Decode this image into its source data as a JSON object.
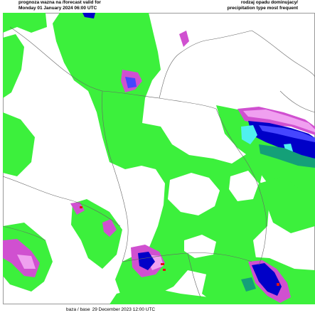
{
  "header": {
    "left_line1": "prognoza wazna na /forecast valid for",
    "left_line2": "Monday 01 January 2024 06:00 UTC",
    "right_line1": "rodzaj opadu dominujacy/",
    "right_line2": "precipitation type most frequent"
  },
  "footer": {
    "label": "baza / base",
    "value": "29 December 2023 12:00 UTC"
  },
  "colors": {
    "rain": "#3cf03c",
    "snow": "#0000c8",
    "snow_light": "#4646ff",
    "mixed": "#d050d0",
    "mixed_light": "#f0a0f0",
    "freezing": "#50f0f0",
    "teal": "#14a078",
    "red": "#e01010",
    "borders": "#666666"
  }
}
